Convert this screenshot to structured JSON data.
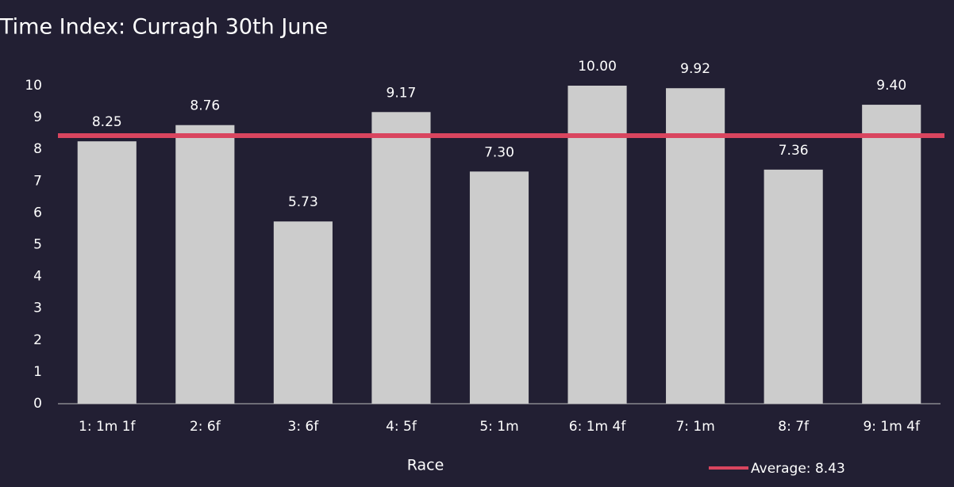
{
  "chart_data": {
    "type": "bar",
    "title": "Time Index: Curragh 30th June",
    "x_label": "Race",
    "categories": [
      "1: 1m 1f",
      "2: 6f",
      "3: 6f",
      "4: 5f",
      "5: 1m",
      "6: 1m 4f",
      "7: 1m",
      "8: 7f",
      "9: 1m 4f"
    ],
    "values": [
      8.25,
      8.76,
      5.73,
      9.17,
      7.3,
      10.0,
      9.92,
      7.36,
      9.4
    ],
    "value_labels": [
      "8.25",
      "8.76",
      "5.73",
      "9.17",
      "7.30",
      "10.00",
      "9.92",
      "7.36",
      "9.40"
    ],
    "color": "#cccccc",
    "average": {
      "name": "Average: 8.43",
      "value": 8.43,
      "color": "#d9455f"
    },
    "ylim": [
      0,
      10
    ],
    "yticks": [
      0,
      1,
      2,
      3,
      4,
      5,
      6,
      7,
      8,
      9,
      10
    ],
    "legend": "bottom-right"
  }
}
